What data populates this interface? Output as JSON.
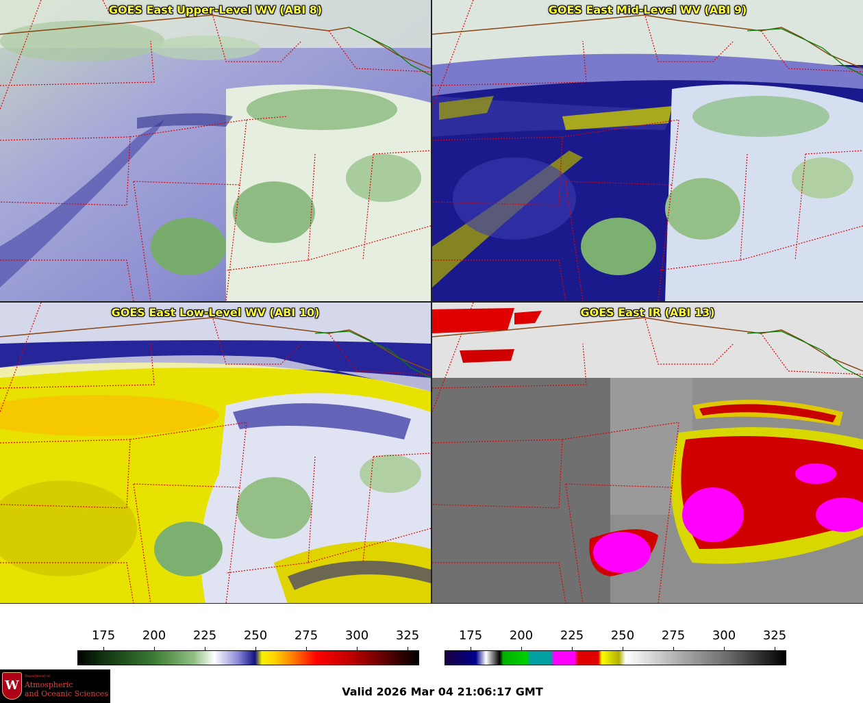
{
  "panels": [
    {
      "title": "GOES East Upper-Level WV (ABI 8)",
      "product": "upper-level-wv"
    },
    {
      "title": "GOES East Mid-Level WV (ABI 9)",
      "product": "mid-level-wv"
    },
    {
      "title": "GOES East Low-Level WV (ABI 10)",
      "product": "low-level-wv"
    },
    {
      "title": "GOES East IR (ABI 13)",
      "product": "ir"
    }
  ],
  "colorbars": [
    {
      "name": "water-vapor",
      "ticks": [
        "175",
        "200",
        "225",
        "250",
        "275",
        "300",
        "325"
      ]
    },
    {
      "name": "infrared",
      "ticks": [
        "175",
        "200",
        "225",
        "250",
        "275",
        "300",
        "325"
      ]
    }
  ],
  "logo": {
    "dept": "Department of",
    "line1": "Atmospheric",
    "line2": "and Oceanic Sciences",
    "seal_letter": "W"
  },
  "valid_time": "Valid 2026 Mar 04 21:06:17 GMT",
  "colors": {
    "state_borders": "#e00000",
    "country_border": "#8b4513",
    "coast": "#008000",
    "title_text": "#ffff33"
  }
}
